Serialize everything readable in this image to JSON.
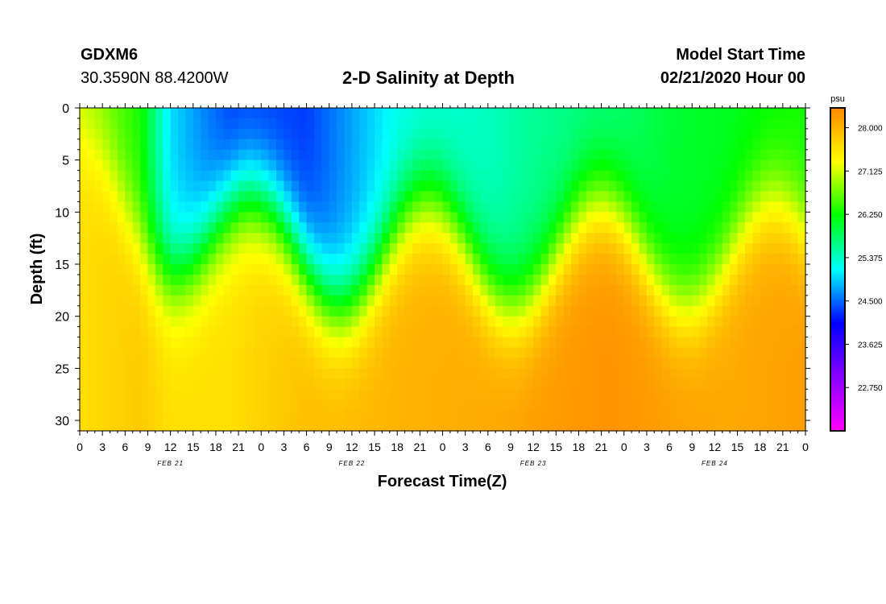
{
  "header": {
    "station": "GDXM6",
    "coords": "30.3590N 88.4200W",
    "title": "2-D Salinity at Depth",
    "start_label": "Model Start Time",
    "start_value": "02/21/2020 Hour 00"
  },
  "chart_data": {
    "type": "heatmap",
    "title": "2-D Salinity at Depth",
    "xlabel": "Forecast Time(Z)",
    "ylabel": "Depth (ft)",
    "x_tick_labels": [
      "0",
      "3",
      "6",
      "9",
      "12",
      "15",
      "18",
      "21",
      "0",
      "3",
      "6",
      "9",
      "12",
      "15",
      "18",
      "21",
      "0",
      "3",
      "6",
      "9",
      "12",
      "15",
      "18",
      "21",
      "0",
      "3",
      "6",
      "9",
      "12",
      "15",
      "18",
      "21",
      "0"
    ],
    "x_day_labels": [
      "FEB 21",
      "FEB 22",
      "FEB 23",
      "FEB 24"
    ],
    "xlim_hours": [
      0,
      96
    ],
    "y_ticks": [
      0,
      5,
      10,
      15,
      20,
      25,
      30
    ],
    "ylim": [
      0,
      31
    ],
    "colorbar": {
      "unit": "psu",
      "ticks": [
        28.0,
        27.125,
        26.25,
        25.375,
        24.5,
        23.625,
        22.75
      ],
      "tick_labels": [
        "28.000",
        "27.125",
        "26.250",
        "25.375",
        "24.500",
        "23.625",
        "22.750"
      ],
      "range": [
        21.875,
        28.4
      ],
      "colors": [
        "#ff00ff",
        "#8800ff",
        "#0000ff",
        "#00ffff",
        "#00ff00",
        "#ffff00",
        "#ff8800"
      ]
    },
    "layers_note_free": true,
    "surface_salinity_at_hours": {
      "hours": [
        0,
        8,
        12,
        20,
        30,
        42,
        54,
        60,
        70,
        78,
        86,
        96
      ],
      "surface": [
        27.0,
        26.3,
        25.0,
        24.3,
        24.3,
        25.2,
        25.4,
        25.6,
        25.7,
        26.0,
        26.1,
        26.3
      ],
      "bottom": [
        27.6,
        27.8,
        27.6,
        27.6,
        27.9,
        28.0,
        28.1,
        28.2,
        28.3,
        28.2,
        28.1,
        28.2
      ]
    }
  }
}
